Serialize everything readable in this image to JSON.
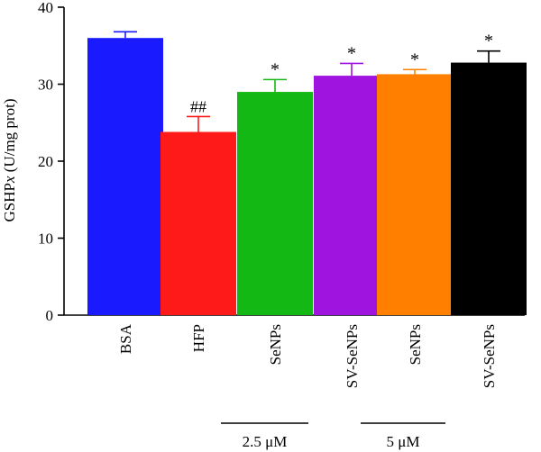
{
  "chart_data": {
    "type": "bar",
    "ylabel": {
      "prefix": "GSHP",
      "italic": "x",
      "suffix": " (U/mg prot)"
    },
    "ylim": [
      0,
      40
    ],
    "yticks": [
      0,
      10,
      20,
      30,
      40
    ],
    "grid": false,
    "categories": [
      "BSA",
      "HFP",
      "SeNPs",
      "SV-SeNPs",
      "SeNPs",
      "SV-SeNPs"
    ],
    "values": [
      36.0,
      23.8,
      29.0,
      31.1,
      31.3,
      32.8
    ],
    "errors": [
      0.8,
      2.0,
      1.6,
      1.6,
      0.6,
      1.5
    ],
    "annotations": [
      "",
      "##",
      "*",
      "*",
      "*",
      "*"
    ],
    "colors": [
      "#1a1aff",
      "#ff1a1a",
      "#14b814",
      "#a014e0",
      "#ff8000",
      "#000000"
    ],
    "groups": [
      {
        "label": "2.5 μM",
        "from": 2,
        "to": 3
      },
      {
        "label": "5 μM",
        "from": 4,
        "to": 5
      }
    ]
  }
}
